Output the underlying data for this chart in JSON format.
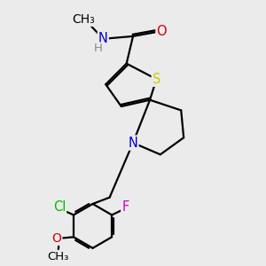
{
  "bg_color": "#ebebeb",
  "atom_colors": {
    "C": "#000000",
    "N": "#0000cc",
    "O": "#cc0000",
    "S": "#cccc00",
    "Cl": "#00bb00",
    "F": "#cc00cc",
    "H": "#888888"
  },
  "bond_color": "#000000",
  "bond_width": 1.6,
  "font_size": 10.5
}
